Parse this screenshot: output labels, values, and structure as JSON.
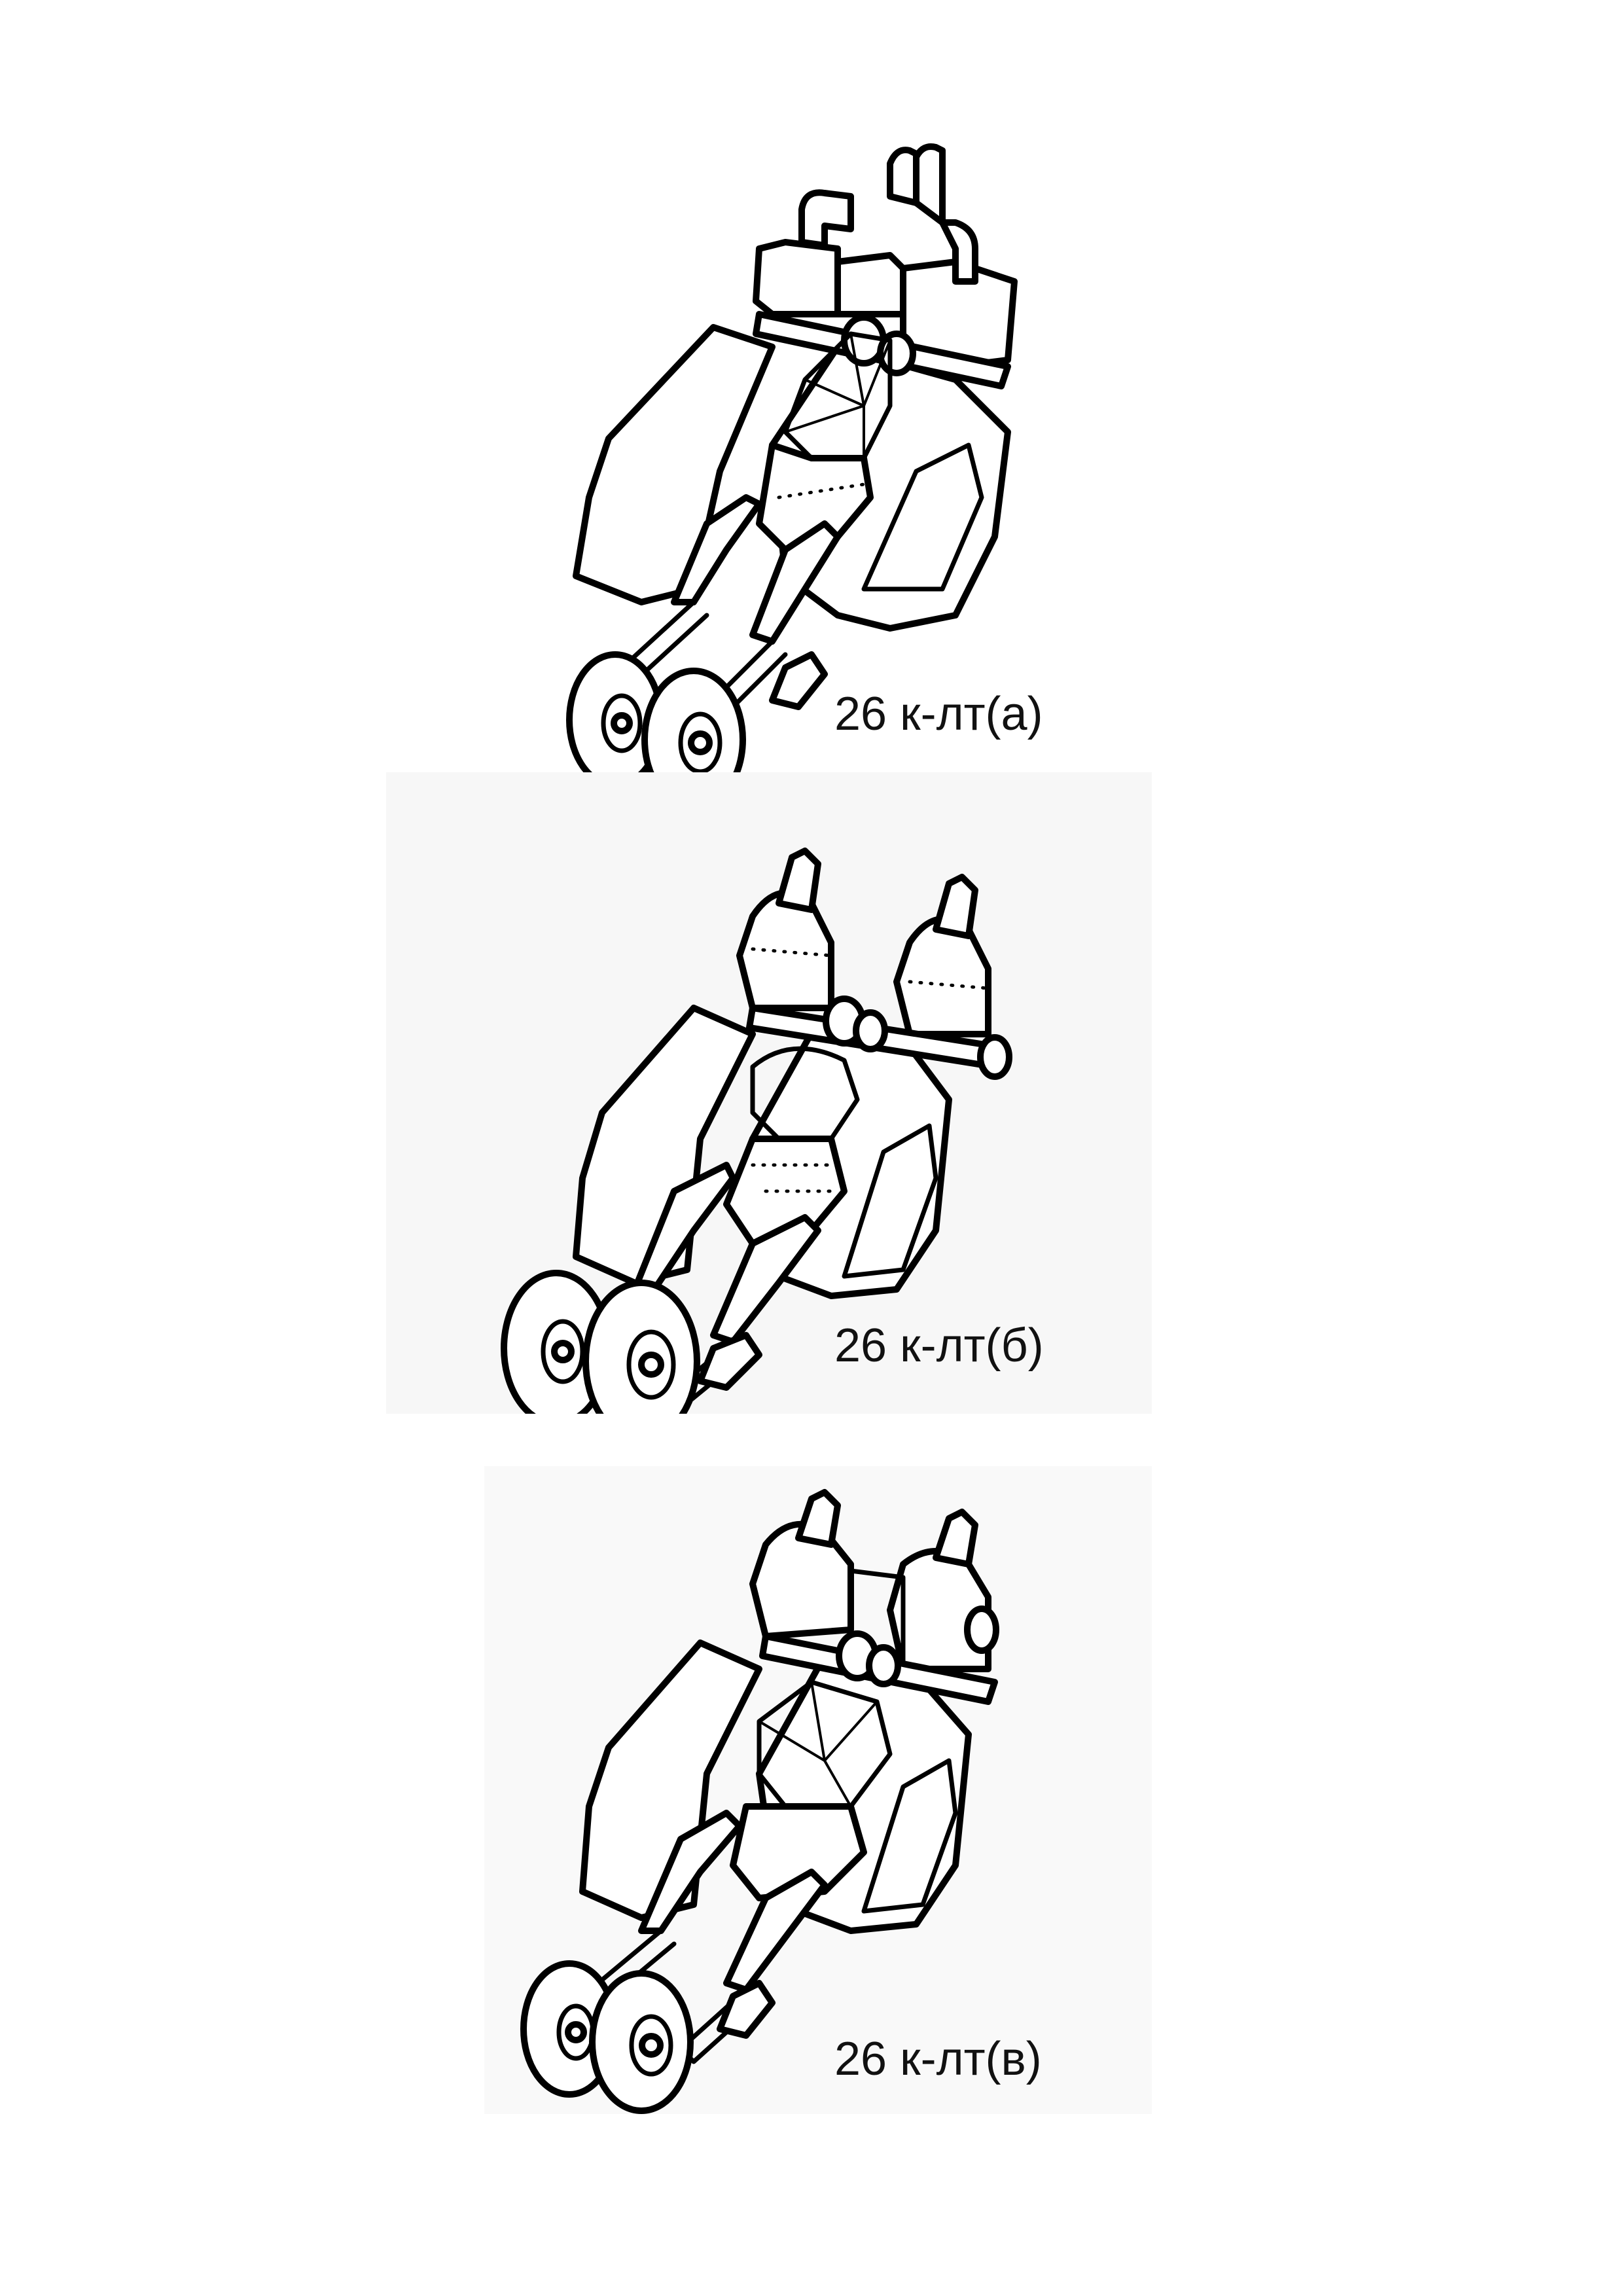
{
  "figures": [
    {
      "id": "a",
      "caption": "26 к-лт(а)"
    },
    {
      "id": "b",
      "caption": "26 к-лт(б)"
    },
    {
      "id": "c",
      "caption": "26 к-лт(в)"
    }
  ],
  "colors": {
    "ink": "#000000",
    "paper": "#ffffff",
    "panel_b_background": "#f7f7f7",
    "panel_c_background": "#f9f9f9"
  }
}
